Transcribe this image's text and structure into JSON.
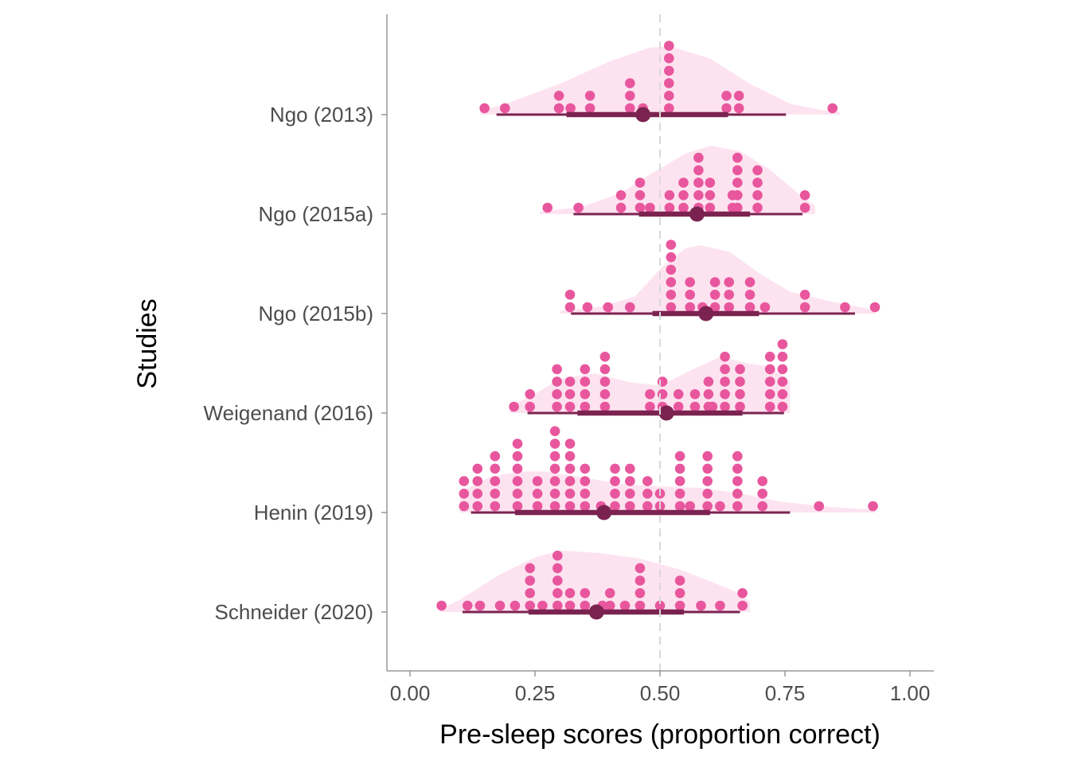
{
  "chart_data": {
    "type": "raincloud",
    "xlabel": "Pre-sleep scores (proportion correct)",
    "ylabel": "Studies",
    "xlim": [
      -0.05,
      1.05
    ],
    "x_ticks": [
      0,
      0.25,
      0.5,
      0.75,
      1.0
    ],
    "x_tick_labels": [
      "0.00",
      "0.25",
      "0.50",
      "0.75",
      "1.00"
    ],
    "reference_line": 0.5,
    "grid": false,
    "legend": "none",
    "colors": {
      "density": "#fde3f0",
      "dots": "#e8579d",
      "summary": "#7b2350",
      "reference": "#d9d9d9",
      "axis": "#999999"
    },
    "studies": [
      {
        "name": "Ngo (2013)",
        "median": 0.466,
        "inner_interval": [
          0.313,
          0.636
        ],
        "outer_interval": [
          0.173,
          0.752
        ],
        "dots": [
          [
            0.149,
            1
          ],
          [
            0.19,
            1
          ],
          [
            0.298,
            2
          ],
          [
            0.321,
            1
          ],
          [
            0.36,
            2
          ],
          [
            0.44,
            3
          ],
          [
            0.466,
            1
          ],
          [
            0.518,
            6
          ],
          [
            0.633,
            2
          ],
          [
            0.658,
            2
          ],
          [
            0.845,
            1
          ]
        ],
        "density": [
          [
            0.14,
            0.05
          ],
          [
            0.2,
            0.18
          ],
          [
            0.3,
            0.45
          ],
          [
            0.4,
            0.78
          ],
          [
            0.48,
            0.98
          ],
          [
            0.52,
            1.0
          ],
          [
            0.6,
            0.82
          ],
          [
            0.68,
            0.45
          ],
          [
            0.76,
            0.16
          ],
          [
            0.82,
            0.07
          ],
          [
            0.86,
            0.04
          ]
        ]
      },
      {
        "name": "Ngo (2015a)",
        "median": 0.574,
        "inner_interval": [
          0.458,
          0.68
        ],
        "outer_interval": [
          0.327,
          0.785
        ],
        "dots": [
          [
            0.275,
            1
          ],
          [
            0.337,
            1
          ],
          [
            0.422,
            2
          ],
          [
            0.46,
            3
          ],
          [
            0.48,
            1
          ],
          [
            0.519,
            2
          ],
          [
            0.547,
            3
          ],
          [
            0.577,
            5
          ],
          [
            0.6,
            3
          ],
          [
            0.645,
            2
          ],
          [
            0.655,
            5
          ],
          [
            0.695,
            4
          ],
          [
            0.79,
            2
          ]
        ],
        "density": [
          [
            0.26,
            0.04
          ],
          [
            0.34,
            0.1
          ],
          [
            0.42,
            0.3
          ],
          [
            0.48,
            0.58
          ],
          [
            0.55,
            0.88
          ],
          [
            0.6,
            1.0
          ],
          [
            0.66,
            0.92
          ],
          [
            0.72,
            0.65
          ],
          [
            0.78,
            0.28
          ],
          [
            0.81,
            0.12
          ]
        ]
      },
      {
        "name": "Ngo (2015b)",
        "median": 0.592,
        "inner_interval": [
          0.485,
          0.698
        ],
        "outer_interval": [
          0.322,
          0.89
        ],
        "dots": [
          [
            0.32,
            2
          ],
          [
            0.355,
            1
          ],
          [
            0.396,
            1
          ],
          [
            0.44,
            1
          ],
          [
            0.522,
            6
          ],
          [
            0.56,
            3
          ],
          [
            0.585,
            1
          ],
          [
            0.61,
            3
          ],
          [
            0.638,
            3
          ],
          [
            0.68,
            3
          ],
          [
            0.71,
            1
          ],
          [
            0.79,
            2
          ],
          [
            0.87,
            1
          ],
          [
            0.93,
            1
          ]
        ],
        "density": [
          [
            0.3,
            0.04
          ],
          [
            0.38,
            0.1
          ],
          [
            0.45,
            0.25
          ],
          [
            0.5,
            0.65
          ],
          [
            0.55,
            0.95
          ],
          [
            0.58,
            1.0
          ],
          [
            0.64,
            0.9
          ],
          [
            0.7,
            0.58
          ],
          [
            0.76,
            0.32
          ],
          [
            0.84,
            0.18
          ],
          [
            0.93,
            0.05
          ]
        ]
      },
      {
        "name": "Weigenand (2016)",
        "median": 0.513,
        "inner_interval": [
          0.335,
          0.665
        ],
        "outer_interval": [
          0.235,
          0.748
        ],
        "dots": [
          [
            0.208,
            1
          ],
          [
            0.24,
            2
          ],
          [
            0.294,
            4
          ],
          [
            0.32,
            3
          ],
          [
            0.35,
            4
          ],
          [
            0.39,
            5
          ],
          [
            0.48,
            2
          ],
          [
            0.505,
            3
          ],
          [
            0.537,
            2
          ],
          [
            0.57,
            2
          ],
          [
            0.597,
            3
          ],
          [
            0.605,
            1
          ],
          [
            0.63,
            5
          ],
          [
            0.66,
            4
          ],
          [
            0.72,
            5
          ],
          [
            0.745,
            6
          ]
        ],
        "density": [
          [
            0.2,
            0.1
          ],
          [
            0.25,
            0.28
          ],
          [
            0.3,
            0.5
          ],
          [
            0.37,
            0.58
          ],
          [
            0.44,
            0.45
          ],
          [
            0.5,
            0.4
          ],
          [
            0.56,
            0.62
          ],
          [
            0.62,
            0.82
          ],
          [
            0.68,
            0.72
          ],
          [
            0.72,
            0.68
          ],
          [
            0.76,
            0.45
          ]
        ]
      },
      {
        "name": "Henin (2019)",
        "median": 0.388,
        "inner_interval": [
          0.21,
          0.6
        ],
        "outer_interval": [
          0.122,
          0.76
        ],
        "dots": [
          [
            0.108,
            3
          ],
          [
            0.135,
            4
          ],
          [
            0.17,
            5
          ],
          [
            0.215,
            6
          ],
          [
            0.255,
            3
          ],
          [
            0.29,
            7
          ],
          [
            0.32,
            6
          ],
          [
            0.35,
            4
          ],
          [
            0.382,
            1
          ],
          [
            0.41,
            4
          ],
          [
            0.44,
            4
          ],
          [
            0.475,
            3
          ],
          [
            0.5,
            2
          ],
          [
            0.54,
            5
          ],
          [
            0.56,
            1
          ],
          [
            0.595,
            5
          ],
          [
            0.62,
            1
          ],
          [
            0.655,
            5
          ],
          [
            0.705,
            3
          ],
          [
            0.818,
            1
          ],
          [
            0.926,
            1
          ]
        ],
        "density": [
          [
            0.1,
            0.3
          ],
          [
            0.16,
            0.52
          ],
          [
            0.22,
            0.6
          ],
          [
            0.27,
            0.6
          ],
          [
            0.34,
            0.52
          ],
          [
            0.42,
            0.42
          ],
          [
            0.5,
            0.38
          ],
          [
            0.58,
            0.36
          ],
          [
            0.66,
            0.28
          ],
          [
            0.74,
            0.16
          ],
          [
            0.84,
            0.08
          ],
          [
            0.93,
            0.04
          ]
        ]
      },
      {
        "name": "Schneider (2020)",
        "median": 0.373,
        "inner_interval": [
          0.237,
          0.548
        ],
        "outer_interval": [
          0.105,
          0.66
        ],
        "dots": [
          [
            0.063,
            1
          ],
          [
            0.115,
            1
          ],
          [
            0.14,
            1
          ],
          [
            0.18,
            1
          ],
          [
            0.21,
            1
          ],
          [
            0.24,
            4
          ],
          [
            0.265,
            1
          ],
          [
            0.295,
            5
          ],
          [
            0.32,
            2
          ],
          [
            0.35,
            2
          ],
          [
            0.385,
            1
          ],
          [
            0.4,
            2
          ],
          [
            0.43,
            1
          ],
          [
            0.46,
            4
          ],
          [
            0.5,
            1
          ],
          [
            0.54,
            3
          ],
          [
            0.582,
            1
          ],
          [
            0.62,
            1
          ],
          [
            0.665,
            2
          ]
        ],
        "density": [
          [
            0.06,
            0.04
          ],
          [
            0.1,
            0.18
          ],
          [
            0.18,
            0.55
          ],
          [
            0.25,
            0.8
          ],
          [
            0.3,
            0.9
          ],
          [
            0.38,
            0.86
          ],
          [
            0.46,
            0.78
          ],
          [
            0.54,
            0.62
          ],
          [
            0.6,
            0.45
          ],
          [
            0.65,
            0.3
          ],
          [
            0.68,
            0.15
          ]
        ]
      }
    ]
  }
}
